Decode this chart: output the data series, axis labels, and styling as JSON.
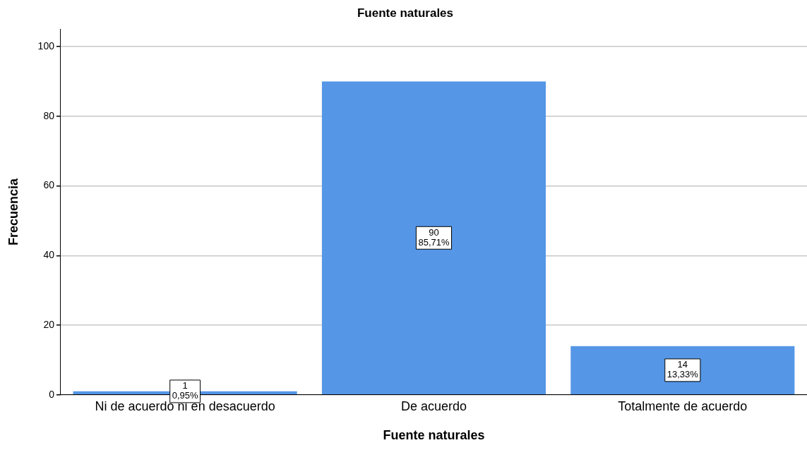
{
  "chart_data": {
    "type": "bar",
    "title": "Fuente naturales",
    "xlabel": "Fuente naturales",
    "ylabel": "Frecuencia",
    "categories": [
      "Ni de acuerdo ni en desacuerdo",
      "De acuerdo",
      "Totalmente de acuerdo"
    ],
    "values": [
      1,
      90,
      14
    ],
    "color": "#5596e6",
    "value_labels": [
      "1\n0,95%",
      "90\n85,71%",
      "14\n13,33%"
    ],
    "ylim": [
      0,
      105
    ],
    "yticks": [
      0,
      20,
      40,
      60,
      80,
      100
    ],
    "grid": "y"
  }
}
